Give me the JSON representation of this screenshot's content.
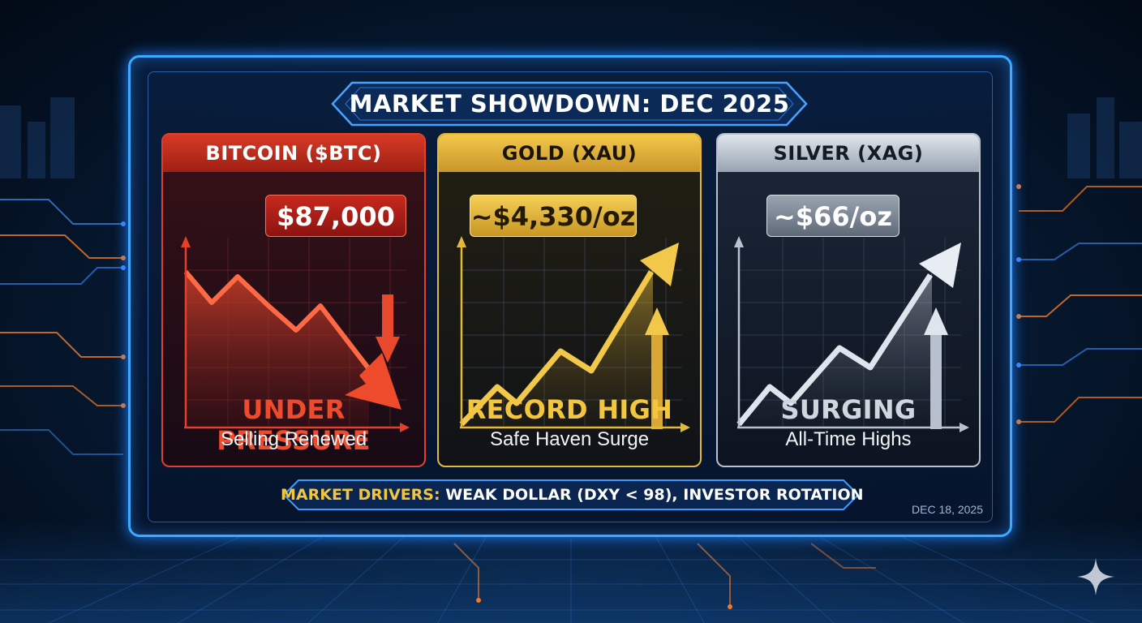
{
  "title": "MARKET SHOWDOWN: DEC 2025",
  "panels": [
    {
      "name": "BITCOIN ($BTC)",
      "price": "$87,000",
      "status": "UNDER PRESSURE",
      "subtitle": "Selling Renewed",
      "trend": "down",
      "color": "#e2402b"
    },
    {
      "name": "GOLD (XAU)",
      "price": "~$4,330/oz",
      "status": "RECORD HIGH",
      "subtitle": "Safe Haven Surge",
      "trend": "up",
      "color": "#e2b93b"
    },
    {
      "name": "SILVER (XAG)",
      "price": "~$66/oz",
      "status": "SURGING",
      "subtitle": "All-Time Highs",
      "trend": "up",
      "color": "#b8c1cc"
    }
  ],
  "drivers": {
    "label": "MARKET DRIVERS:",
    "value": "WEAK DOLLAR (DXY < 98), INVESTOR ROTATION"
  },
  "date": "DEC 18, 2025",
  "icons": [
    "sparkle-icon"
  ]
}
